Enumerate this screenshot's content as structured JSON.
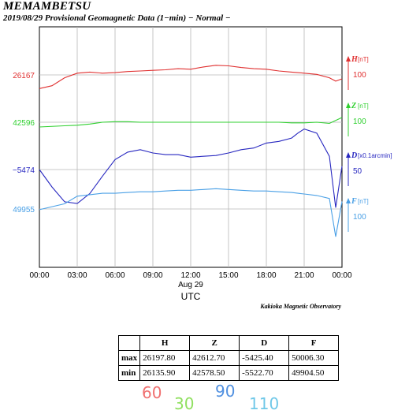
{
  "header": {
    "station": "MEMAMBETSU",
    "subtitle": "2019/08/29  Provisional Geomagnetic Data (1−min)  − Normal −"
  },
  "chart_data": {
    "type": "line",
    "x_ticks": [
      "00:00",
      "03:00",
      "06:00",
      "09:00",
      "12:00",
      "15:00",
      "18:00",
      "21:00",
      "00:00"
    ],
    "date_label": "Aug 29",
    "x_label": "UTC",
    "credit": "Kakioka Magnetic Observatory",
    "grid": true,
    "series": [
      {
        "name": "H",
        "unit": "[nT]",
        "scale": "100",
        "baseline": "26167",
        "color": "#e03030",
        "values": [
          [
            0,
            26143
          ],
          [
            1,
            26148
          ],
          [
            2,
            26162
          ],
          [
            3,
            26170
          ],
          [
            4,
            26172
          ],
          [
            5,
            26170
          ],
          [
            6,
            26171
          ],
          [
            7,
            26173
          ],
          [
            8,
            26174
          ],
          [
            9,
            26175
          ],
          [
            10,
            26176
          ],
          [
            11,
            26178
          ],
          [
            12,
            26177
          ],
          [
            13,
            26181
          ],
          [
            14,
            26184
          ],
          [
            15,
            26183
          ],
          [
            16,
            26180
          ],
          [
            17,
            26178
          ],
          [
            18,
            26177
          ],
          [
            19,
            26174
          ],
          [
            20,
            26172
          ],
          [
            21,
            26170
          ],
          [
            22,
            26168
          ],
          [
            23,
            26162
          ],
          [
            23.5,
            26156
          ],
          [
            24,
            26160
          ]
        ]
      },
      {
        "name": "Z",
        "unit": "[nT]",
        "scale": "100",
        "baseline": "42596",
        "color": "#30d030",
        "values": [
          [
            0,
            42588
          ],
          [
            2,
            42590
          ],
          [
            3,
            42591
          ],
          [
            4,
            42593
          ],
          [
            5,
            42596
          ],
          [
            6,
            42597
          ],
          [
            7,
            42597
          ],
          [
            8,
            42596
          ],
          [
            9,
            42596
          ],
          [
            10,
            42596
          ],
          [
            11,
            42596
          ],
          [
            12,
            42596
          ],
          [
            13,
            42596
          ],
          [
            14,
            42596
          ],
          [
            15,
            42596
          ],
          [
            16,
            42596
          ],
          [
            17,
            42596
          ],
          [
            18,
            42596
          ],
          [
            19,
            42596
          ],
          [
            20,
            42595
          ],
          [
            21,
            42595
          ],
          [
            22,
            42596
          ],
          [
            23,
            42594
          ],
          [
            24,
            42604
          ]
        ]
      },
      {
        "name": "D",
        "unit": "[x0.1arcmin]",
        "scale": "50",
        "baseline": "−5474",
        "color": "#2828c0",
        "values": [
          [
            0,
            -5474
          ],
          [
            1,
            -5495
          ],
          [
            2,
            -5513
          ],
          [
            3,
            -5515
          ],
          [
            4,
            -5503
          ],
          [
            5,
            -5482
          ],
          [
            6,
            -5462
          ],
          [
            7,
            -5453
          ],
          [
            8,
            -5450
          ],
          [
            9,
            -5454
          ],
          [
            10,
            -5456
          ],
          [
            11,
            -5456
          ],
          [
            12,
            -5459
          ],
          [
            13,
            -5458
          ],
          [
            14,
            -5457
          ],
          [
            15,
            -5454
          ],
          [
            16,
            -5450
          ],
          [
            17,
            -5448
          ],
          [
            18,
            -5442
          ],
          [
            19,
            -5440
          ],
          [
            20,
            -5436
          ],
          [
            20.5,
            -5430
          ],
          [
            21,
            -5425
          ],
          [
            22,
            -5430
          ],
          [
            23,
            -5458
          ],
          [
            23.5,
            -5520
          ],
          [
            24,
            -5470
          ]
        ]
      },
      {
        "name": "F",
        "unit": "[nT]",
        "scale": "100",
        "baseline": "49955",
        "color": "#4aa0e6",
        "values": [
          [
            0,
            49954
          ],
          [
            2,
            49962
          ],
          [
            3,
            49972
          ],
          [
            4,
            49974
          ],
          [
            5,
            49976
          ],
          [
            6,
            49976
          ],
          [
            7,
            49977
          ],
          [
            8,
            49978
          ],
          [
            9,
            49978
          ],
          [
            10,
            49979
          ],
          [
            11,
            49980
          ],
          [
            12,
            49980
          ],
          [
            13,
            49981
          ],
          [
            14,
            49982
          ],
          [
            15,
            49981
          ],
          [
            16,
            49980
          ],
          [
            17,
            49979
          ],
          [
            18,
            49979
          ],
          [
            19,
            49978
          ],
          [
            20,
            49977
          ],
          [
            21,
            49975
          ],
          [
            22,
            49973
          ],
          [
            23,
            49969
          ],
          [
            23.5,
            49918
          ],
          [
            24,
            49965
          ]
        ]
      }
    ]
  },
  "minmax_table": {
    "headers": [
      "H",
      "Z",
      "D",
      "F"
    ],
    "rows": [
      {
        "label": "max",
        "values": [
          "26197.80",
          "42612.70",
          "-5425.40",
          "50006.30"
        ]
      },
      {
        "label": "min",
        "values": [
          "26135.90",
          "42578.50",
          "-5522.70",
          "49904.50"
        ]
      }
    ]
  },
  "handwritten": {
    "n1": "60",
    "n2": "30",
    "n3": "90",
    "n4": "110",
    "colors": [
      "#f07070",
      "#90e060",
      "#5090e0",
      "#70c8e8"
    ]
  }
}
